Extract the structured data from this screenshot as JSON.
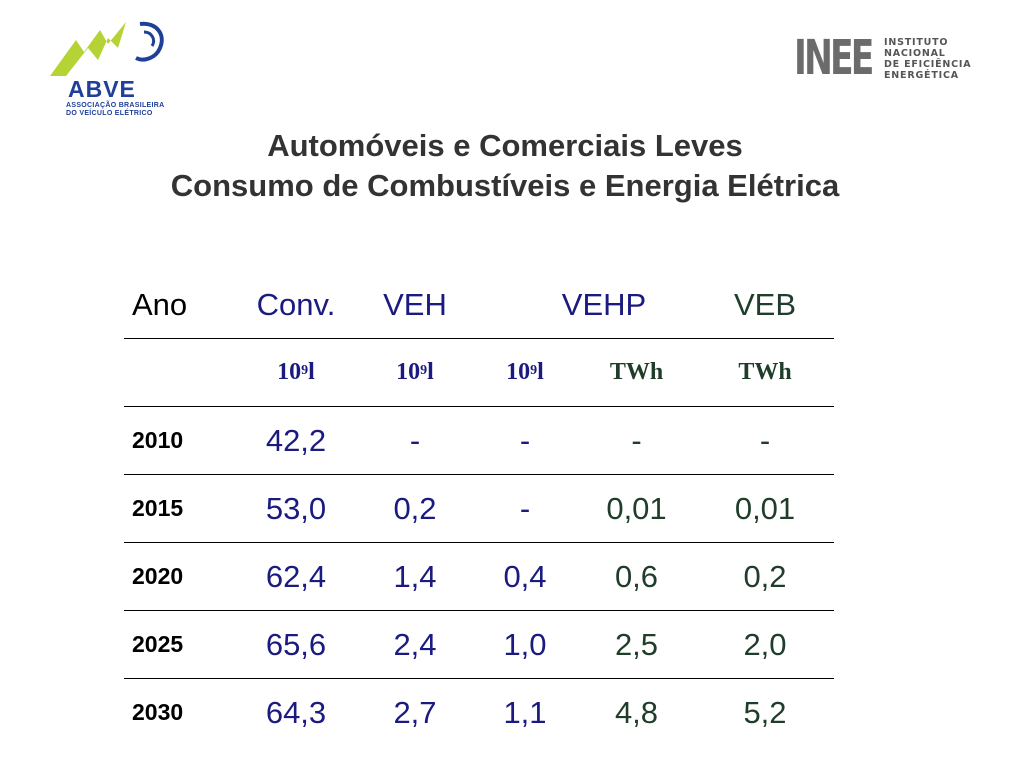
{
  "logos": {
    "abve": {
      "name": "ABVE",
      "line1": "ASSOCIAÇÃO BRASILEIRA",
      "line2": "DO VEÍCULO ELÉTRICO"
    },
    "inee": {
      "mark": "INEE",
      "line1": "INSTITUTO",
      "line2": "NACIONAL",
      "line3": "DE EFICIÊNCIA",
      "line4": "ENERGÉTICA"
    }
  },
  "title": {
    "line1": "Automóveis e Comerciais Leves",
    "line2": "Consumo de Combustíveis e Energia Elétrica"
  },
  "table": {
    "headers": [
      "Ano",
      "Conv.",
      "VEH",
      "VEHP",
      "",
      "VEB"
    ],
    "units": [
      {
        "base": "",
        "exp": "",
        "suffix": ""
      },
      {
        "base": "10",
        "exp": "9",
        "suffix": " l"
      },
      {
        "base": "10",
        "exp": "9",
        "suffix": " l"
      },
      {
        "base": "10",
        "exp": "9",
        "suffix": " l"
      },
      {
        "base": "TWh",
        "exp": "",
        "suffix": ""
      },
      {
        "base": "TWh",
        "exp": "",
        "suffix": ""
      }
    ],
    "rows": [
      {
        "year": "2010",
        "values": [
          "42,2",
          "-",
          "-",
          "-",
          "-"
        ]
      },
      {
        "year": "2015",
        "values": [
          "53,0",
          "0,2",
          "-",
          "0,01",
          "0,01"
        ]
      },
      {
        "year": "2020",
        "values": [
          "62,4",
          "1,4",
          "0,4",
          "0,6",
          "0,2"
        ]
      },
      {
        "year": "2025",
        "values": [
          "65,6",
          "2,4",
          "1,0",
          "2,5",
          "2,0"
        ]
      },
      {
        "year": "2030",
        "values": [
          "64,3",
          "2,7",
          "1,1",
          "4,8",
          "5,2"
        ]
      }
    ]
  },
  "colors": {
    "blue_text": "#1a1a80",
    "green_text": "#1f3d2a",
    "title_text": "#333333",
    "abve_green": "#b5d334",
    "abve_blue": "#1f3f99",
    "inee_gray": "#6b6b6b"
  }
}
